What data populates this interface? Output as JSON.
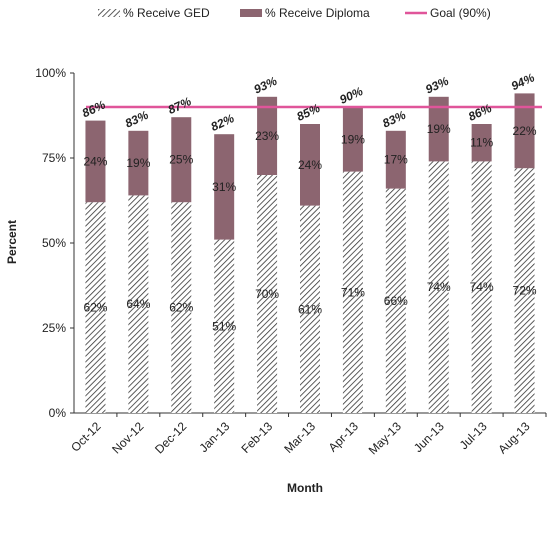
{
  "chart_data": {
    "type": "bar",
    "stacked": true,
    "categories": [
      "Oct-12",
      "Nov-12",
      "Dec-12",
      "Jan-13",
      "Feb-13",
      "Mar-13",
      "Apr-13",
      "May-13",
      "Jun-13",
      "Jul-13",
      "Aug-13"
    ],
    "series": [
      {
        "name": "% Receive GED",
        "values": [
          62,
          64,
          62,
          51,
          70,
          61,
          71,
          66,
          74,
          74,
          72
        ],
        "labels": [
          "62%",
          "64%",
          "62%",
          "51%",
          "70%",
          "61%",
          "71%",
          "66%",
          "74%",
          "74%",
          "72%"
        ],
        "pattern": "hatched",
        "color": "#333333"
      },
      {
        "name": "% Receive Diploma",
        "values": [
          24,
          19,
          25,
          31,
          23,
          24,
          19,
          17,
          19,
          11,
          22
        ],
        "labels": [
          "24%",
          "19%",
          "25%",
          "31%",
          "23%",
          "24%",
          "19%",
          "17%",
          "19%",
          "11%",
          "22%"
        ],
        "color": "#8c6570"
      }
    ],
    "totals": [
      "86%",
      "83%",
      "87%",
      "82%",
      "93%",
      "85%",
      "90%",
      "83%",
      "93%",
      "86%",
      "94%"
    ],
    "total_values": [
      86,
      83,
      87,
      82,
      93,
      85,
      90,
      83,
      93,
      86,
      94
    ],
    "goal": {
      "name": "Goal (90%)",
      "value": 90,
      "color": "#e0559a"
    },
    "xlabel": "Month",
    "ylabel": "Percent",
    "ylim": [
      0,
      100
    ],
    "yticks": [
      "0%",
      "25%",
      "50%",
      "75%",
      "100%"
    ],
    "ytick_values": [
      0,
      25,
      50,
      75,
      100
    ],
    "grid": false,
    "legend_position": "top"
  }
}
